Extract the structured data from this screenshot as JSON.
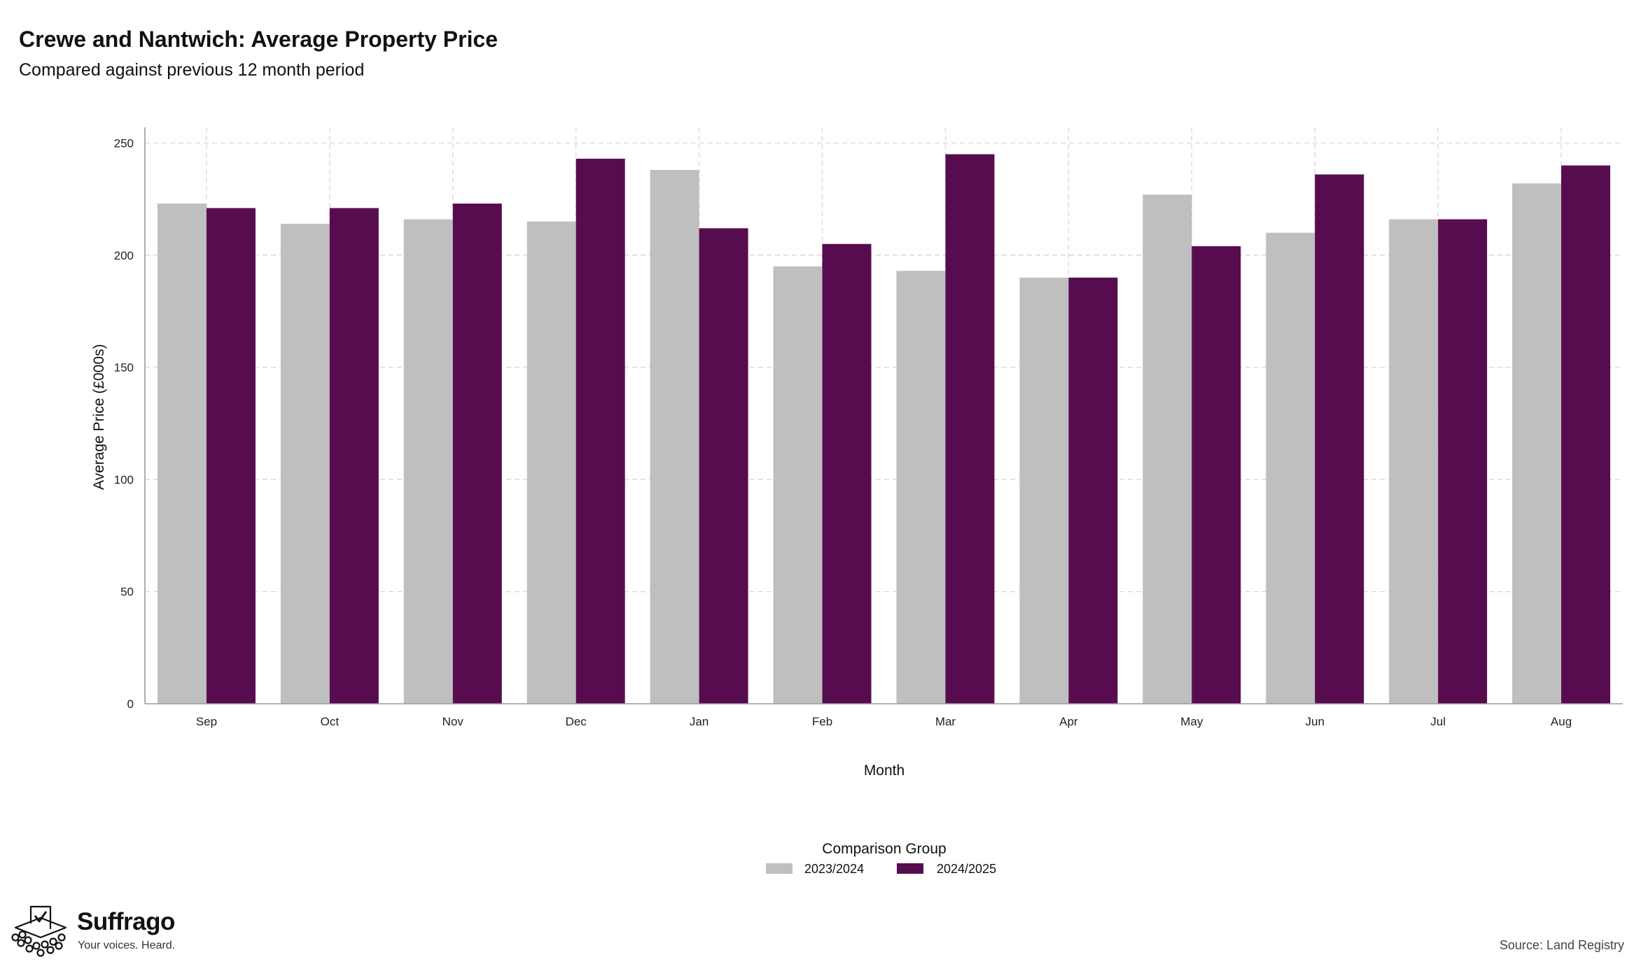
{
  "title": "Crewe and Nantwich: Average Property Price",
  "subtitle": "Compared against previous 12 month period",
  "source": "Source: Land Registry",
  "brand": {
    "name": "Suffrago",
    "tagline": "Your voices. Heard.",
    "logo_icon": "ballot-box-icon"
  },
  "colors": {
    "series_2023_2024": "#bfbfbf",
    "series_2024_2025": "#570c50",
    "grid": "#d9d9d9",
    "axis": "#9a9a9a"
  },
  "chart_data": {
    "type": "bar",
    "title": "Crewe and Nantwich: Average Property Price",
    "subtitle": "Compared against previous 12 month period",
    "xlabel": "Month",
    "ylabel": "Average Price (£000s)",
    "categories": [
      "Sep",
      "Oct",
      "Nov",
      "Dec",
      "Jan",
      "Feb",
      "Mar",
      "Apr",
      "May",
      "Jun",
      "Jul",
      "Aug"
    ],
    "series": [
      {
        "name": "2023/2024",
        "color": "#bfbfbf",
        "values": [
          223,
          214,
          216,
          215,
          238,
          195,
          193,
          190,
          227,
          210,
          216,
          232
        ]
      },
      {
        "name": "2024/2025",
        "color": "#570c50",
        "values": [
          221,
          221,
          223,
          243,
          212,
          205,
          245,
          190,
          204,
          236,
          216,
          240
        ]
      }
    ],
    "ylim": [
      0,
      257
    ],
    "yticks": [
      0,
      50,
      100,
      150,
      200,
      250
    ],
    "grid": true,
    "grid_style": "dashed",
    "legend_title": "Comparison Group",
    "legend_position": "bottom"
  }
}
